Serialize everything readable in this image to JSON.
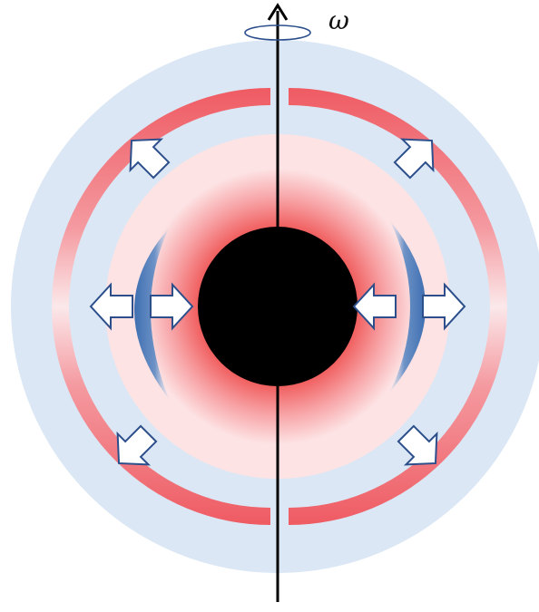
{
  "diagram": {
    "rotation_label": "ω",
    "colors": {
      "outer_shell": "#dbe7f4",
      "inner_disk": "#fde3e4",
      "glow": "#f05a5a",
      "red_band": "#ef5b63",
      "blue_lens": "#4a78b4",
      "arrow_stroke": "#2c4f8c",
      "arrow_fill": "#ffffff",
      "core": "#000000",
      "axis": "#000000"
    },
    "elements": {
      "core": "central-black-core",
      "axis": "rotation-axis",
      "outflow_arrows": "outward-arrows",
      "inflow_arrows": "inward-arrows"
    }
  }
}
